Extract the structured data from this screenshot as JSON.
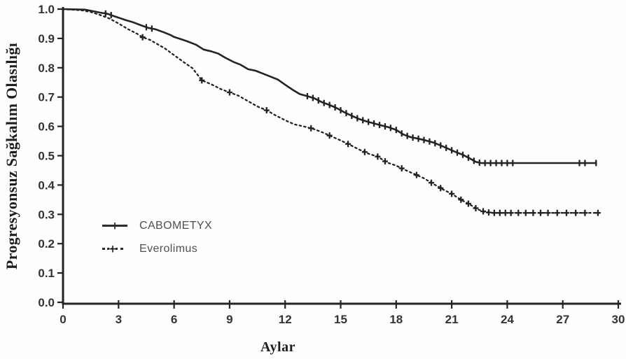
{
  "figure": {
    "background": "#fefefe",
    "line_color": "#232323",
    "tick_label_color": "#333333",
    "axis_label_color": "#1e1e1e",
    "legend_text_color": "#4f4f4f"
  },
  "icons": {
    "censor_plus": "+"
  },
  "chart_data": {
    "type": "line",
    "subtype": "kaplan-meier-survival",
    "title": "",
    "xlabel": "Aylar",
    "ylabel": "Progresyonsuz Sağkalım Olasılığı",
    "xlim": [
      0,
      30
    ],
    "ylim": [
      0.0,
      1.0
    ],
    "xticks": [
      0,
      3,
      6,
      9,
      12,
      15,
      18,
      21,
      24,
      27,
      30
    ],
    "yticks": [
      "0.0",
      "0.1",
      "0.2",
      "0.3",
      "0.4",
      "0.5",
      "0.6",
      "0.7",
      "0.8",
      "0.9",
      "1.0"
    ],
    "grid": false,
    "legend_position": "inside-lower-left",
    "series": [
      {
        "name": "CABOMETYX",
        "style": "solid",
        "marker": "tick",
        "points": [
          [
            0,
            1.0
          ],
          [
            1.2,
            0.998
          ],
          [
            1.6,
            0.993
          ],
          [
            2.0,
            0.988
          ],
          [
            2.4,
            0.984
          ],
          [
            2.8,
            0.975
          ],
          [
            3.0,
            0.971
          ],
          [
            3.4,
            0.962
          ],
          [
            3.8,
            0.955
          ],
          [
            4.2,
            0.945
          ],
          [
            4.6,
            0.936
          ],
          [
            5.0,
            0.931
          ],
          [
            5.4,
            0.922
          ],
          [
            5.8,
            0.912
          ],
          [
            6.0,
            0.905
          ],
          [
            6.4,
            0.897
          ],
          [
            6.8,
            0.888
          ],
          [
            7.2,
            0.878
          ],
          [
            7.6,
            0.862
          ],
          [
            8.0,
            0.856
          ],
          [
            8.4,
            0.848
          ],
          [
            8.8,
            0.833
          ],
          [
            9.2,
            0.82
          ],
          [
            9.6,
            0.81
          ],
          [
            10.0,
            0.795
          ],
          [
            10.4,
            0.79
          ],
          [
            10.8,
            0.78
          ],
          [
            11.2,
            0.77
          ],
          [
            11.6,
            0.76
          ],
          [
            12.0,
            0.742
          ],
          [
            12.4,
            0.725
          ],
          [
            12.8,
            0.71
          ],
          [
            13.2,
            0.703
          ],
          [
            13.6,
            0.695
          ],
          [
            14.0,
            0.682
          ],
          [
            14.4,
            0.673
          ],
          [
            14.8,
            0.662
          ],
          [
            15.2,
            0.648
          ],
          [
            15.6,
            0.636
          ],
          [
            16.0,
            0.625
          ],
          [
            16.4,
            0.617
          ],
          [
            16.8,
            0.61
          ],
          [
            17.2,
            0.603
          ],
          [
            17.6,
            0.597
          ],
          [
            18.0,
            0.588
          ],
          [
            18.4,
            0.572
          ],
          [
            18.8,
            0.563
          ],
          [
            19.2,
            0.558
          ],
          [
            19.6,
            0.552
          ],
          [
            20.0,
            0.545
          ],
          [
            20.4,
            0.535
          ],
          [
            20.8,
            0.524
          ],
          [
            21.2,
            0.513
          ],
          [
            21.6,
            0.503
          ],
          [
            22.0,
            0.49
          ],
          [
            22.3,
            0.479
          ],
          [
            22.6,
            0.475
          ],
          [
            28.8,
            0.475
          ]
        ],
        "censor_marks": [
          2.3,
          2.6,
          4.5,
          4.8,
          13.2,
          13.5,
          13.8,
          14.1,
          14.4,
          14.7,
          15.0,
          15.3,
          15.6,
          15.9,
          16.2,
          16.5,
          16.8,
          17.1,
          17.4,
          17.7,
          18.0,
          18.3,
          18.6,
          18.9,
          19.2,
          19.5,
          19.8,
          20.1,
          20.4,
          20.7,
          21.0,
          21.3,
          21.6,
          21.9,
          22.2,
          22.5,
          22.8,
          23.1,
          23.4,
          23.7,
          24.0,
          24.3,
          27.9,
          28.2,
          28.8
        ]
      },
      {
        "name": "Everolimus",
        "style": "dotted",
        "marker": "plus",
        "points": [
          [
            0,
            1.0
          ],
          [
            1.0,
            0.996
          ],
          [
            1.5,
            0.99
          ],
          [
            2.0,
            0.98
          ],
          [
            2.5,
            0.968
          ],
          [
            3.0,
            0.951
          ],
          [
            3.5,
            0.932
          ],
          [
            4.0,
            0.916
          ],
          [
            4.3,
            0.904
          ],
          [
            4.7,
            0.895
          ],
          [
            5.0,
            0.884
          ],
          [
            5.5,
            0.866
          ],
          [
            6.0,
            0.843
          ],
          [
            6.5,
            0.82
          ],
          [
            7.0,
            0.798
          ],
          [
            7.5,
            0.757
          ],
          [
            8.0,
            0.744
          ],
          [
            8.5,
            0.728
          ],
          [
            9.0,
            0.716
          ],
          [
            9.5,
            0.704
          ],
          [
            10.0,
            0.686
          ],
          [
            10.5,
            0.668
          ],
          [
            11.0,
            0.655
          ],
          [
            11.5,
            0.637
          ],
          [
            12.0,
            0.621
          ],
          [
            12.5,
            0.607
          ],
          [
            13.0,
            0.6
          ],
          [
            13.5,
            0.592
          ],
          [
            14.0,
            0.58
          ],
          [
            14.5,
            0.566
          ],
          [
            15.0,
            0.552
          ],
          [
            15.5,
            0.537
          ],
          [
            16.0,
            0.521
          ],
          [
            16.5,
            0.507
          ],
          [
            17.0,
            0.497
          ],
          [
            17.5,
            0.477
          ],
          [
            18.0,
            0.466
          ],
          [
            18.5,
            0.451
          ],
          [
            19.0,
            0.437
          ],
          [
            19.5,
            0.423
          ],
          [
            20.0,
            0.404
          ],
          [
            20.5,
            0.386
          ],
          [
            21.0,
            0.37
          ],
          [
            21.5,
            0.35
          ],
          [
            22.0,
            0.333
          ],
          [
            22.4,
            0.317
          ],
          [
            22.8,
            0.308
          ],
          [
            23.2,
            0.305
          ],
          [
            28.9,
            0.305
          ]
        ],
        "censor_marks": [
          4.3,
          7.5,
          9.0,
          11.0,
          13.4,
          14.4,
          15.4,
          16.3,
          17.0,
          17.4,
          18.3,
          19.1,
          19.9,
          20.4,
          21.0,
          21.5,
          21.9,
          22.3,
          22.7,
          23.0,
          23.3,
          23.6,
          23.9,
          24.2,
          24.6,
          25.0,
          25.4,
          25.8,
          26.2,
          26.7,
          27.2,
          27.7,
          28.2,
          28.9
        ]
      }
    ]
  }
}
